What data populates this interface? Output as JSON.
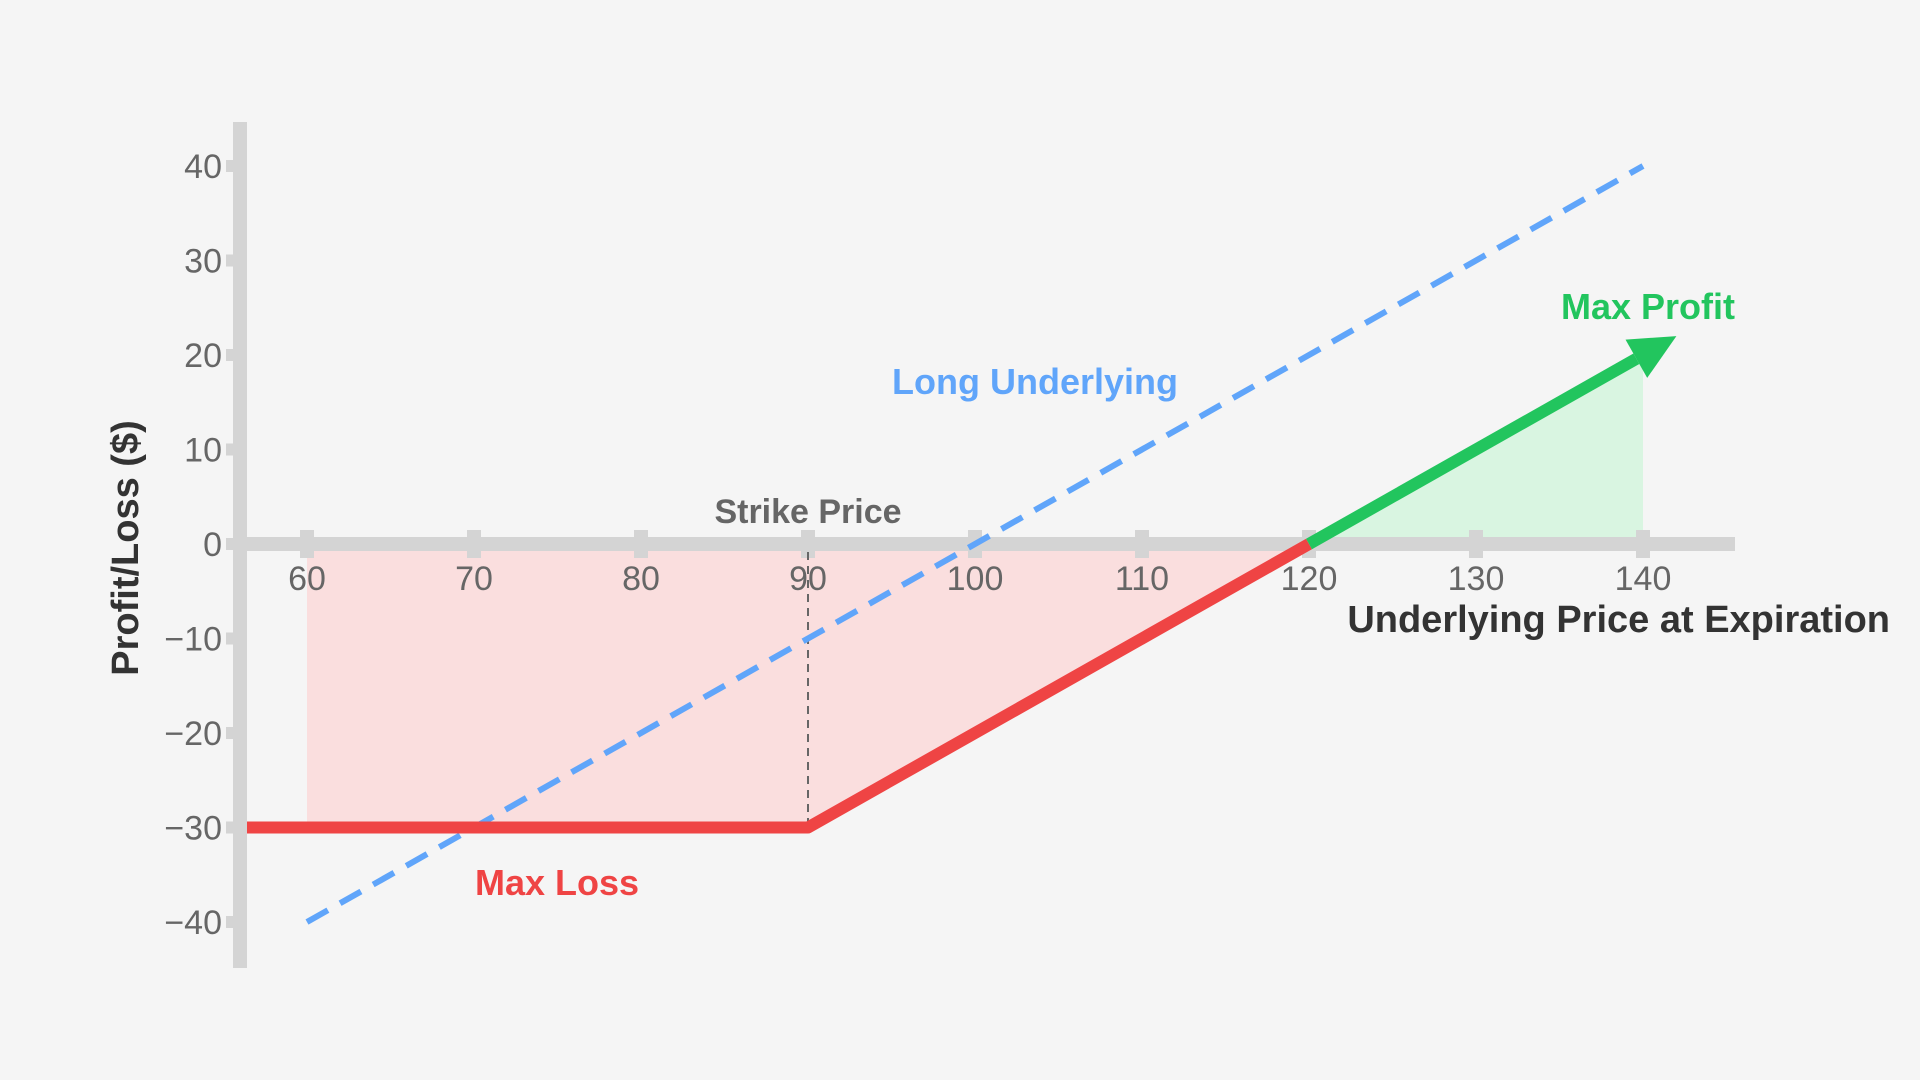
{
  "chart_data": {
    "type": "line",
    "title": "",
    "xlabel": "Underlying Price at Expiration",
    "ylabel": "Profit/Loss ($)",
    "xlim": [
      60,
      140
    ],
    "ylim": [
      -40,
      40
    ],
    "x_ticks": [
      60,
      70,
      80,
      90,
      100,
      110,
      120,
      130,
      140
    ],
    "y_ticks": [
      40,
      30,
      20,
      10,
      0,
      -10,
      -20,
      -30,
      -40
    ],
    "x_tick_labels": [
      "60",
      "70",
      "80",
      "90",
      "100",
      "110",
      "120",
      "130",
      "140"
    ],
    "y_tick_labels": [
      "40",
      "30",
      "20",
      "10",
      "0",
      "−10",
      "−20",
      "−30",
      "−40"
    ],
    "strike_price": 90,
    "series": [
      {
        "name": "Long Underlying",
        "style": "dashed",
        "color": "#60a5fa",
        "x": [
          60,
          140
        ],
        "y": [
          -40,
          40
        ]
      },
      {
        "name": "",
        "style": "solid",
        "color": "#ef4444",
        "x": [
          56,
          90,
          120
        ],
        "y": [
          -30,
          -30,
          0
        ]
      },
      {
        "name": "",
        "style": "arrow",
        "color": "#22c55e",
        "x": [
          120,
          142
        ],
        "y": [
          0,
          22
        ]
      }
    ],
    "shaded_regions": [
      {
        "region": "loss",
        "color": "#fadede",
        "x": [
          60,
          90,
          120
        ],
        "y": [
          -30,
          -30,
          0
        ]
      },
      {
        "region": "profit",
        "color": "#d9f5e1",
        "x": [
          120,
          140
        ],
        "y": [
          0,
          20
        ]
      }
    ],
    "annotations": {
      "strike": {
        "text": "Strike Price",
        "color": "#666666"
      },
      "long_underlying": {
        "text": "Long Underlying",
        "color": "#60a5fa"
      },
      "max_loss": {
        "text": "Max Loss",
        "color": "#ef4444"
      },
      "max_profit": {
        "text": "Max Profit",
        "color": "#22c55e"
      }
    },
    "grid": false,
    "colors": {
      "axis": "#d4d4d4",
      "tick_text": "#666666",
      "title_text": "#333333",
      "strike_line": "#666666"
    }
  }
}
